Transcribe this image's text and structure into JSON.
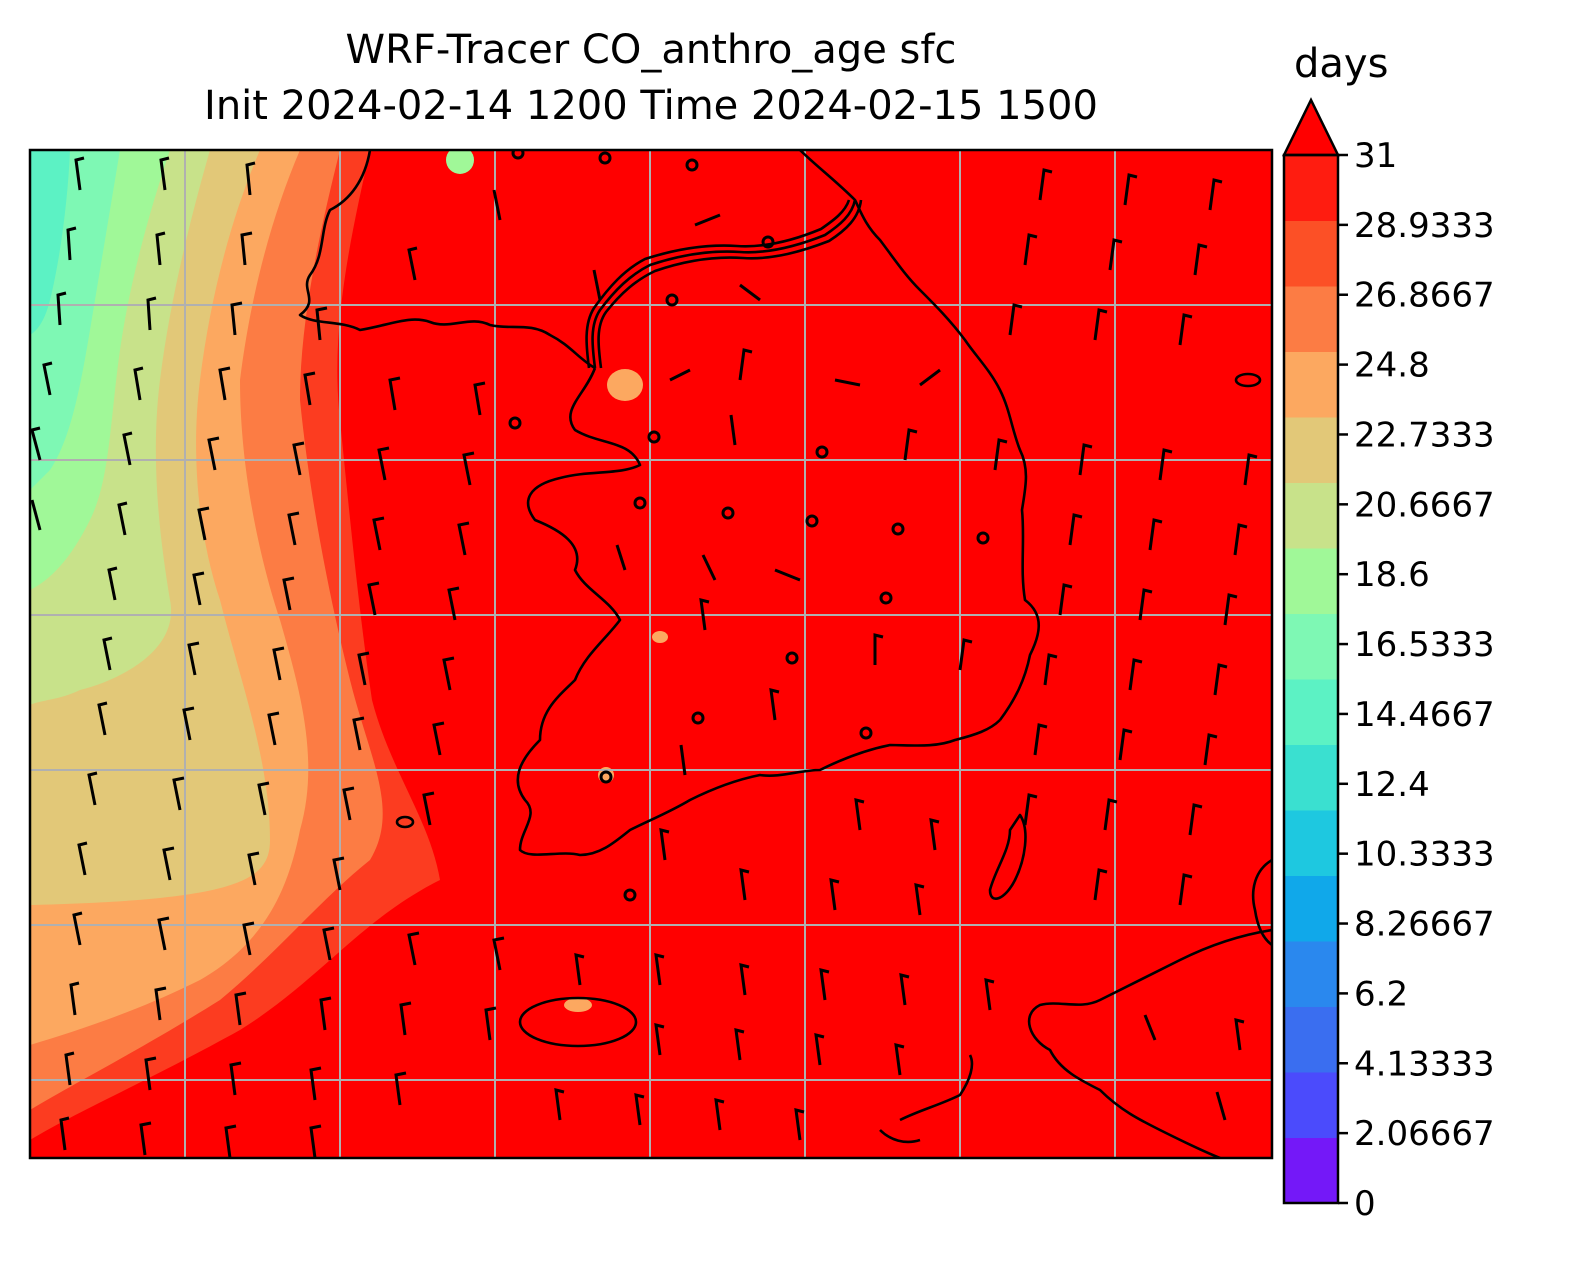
{
  "title_line1": "WRF-Tracer CO_anthro_age sfc",
  "title_line2": "Init 2024-02-14 1200 Time 2024-02-15 1500",
  "colorbar": {
    "units": "days",
    "ticks": [
      "0",
      "2.06667",
      "4.13333",
      "6.2",
      "8.26667",
      "10.3333",
      "12.4",
      "14.4667",
      "16.5333",
      "18.6",
      "20.6667",
      "22.7333",
      "24.8",
      "26.8667",
      "28.9333",
      "31"
    ],
    "colors": [
      "#7418f8",
      "#4b4bfc",
      "#3a6ef0",
      "#2a88ee",
      "#10a8ea",
      "#1ec8e0",
      "#3ae0d0",
      "#5cf2c4",
      "#7ef8b4",
      "#a0f898",
      "#c8e28a",
      "#e2c878",
      "#fca860",
      "#fc7c44",
      "#fc5026",
      "#ff1c10"
    ],
    "extend_color": "#ff0000"
  },
  "map": {
    "gridline_color": "#b0b0b0",
    "field_colors": {
      "deep_red": "#ff0000",
      "red_orange": "#fc3c20",
      "orange": "#fc7c44",
      "light_orange": "#fca860",
      "tan": "#e2c878",
      "light_green": "#c8e28a",
      "pale_green": "#a0f898",
      "aqua": "#7ef8b4"
    }
  }
}
